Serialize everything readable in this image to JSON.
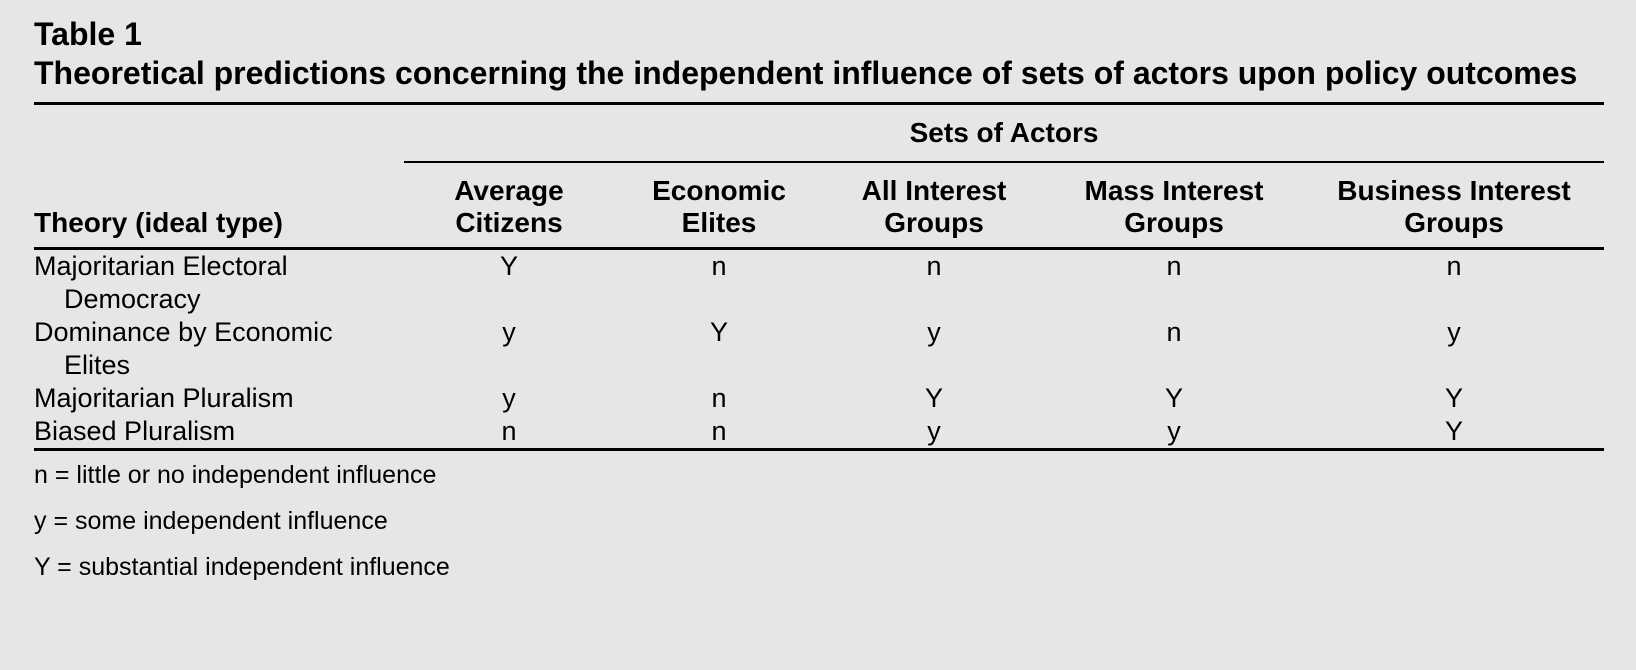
{
  "table_label": "Table 1",
  "table_title": "Theoretical predictions concerning the independent influence of sets of actors upon policy outcomes",
  "spanner": "Sets of Actors",
  "columns": {
    "theory": "Theory (ideal type)",
    "avg_line1": "Average",
    "avg_line2": "Citizens",
    "econ_line1": "Economic",
    "econ_line2": "Elites",
    "all_line1": "All Interest",
    "all_line2": "Groups",
    "mass_line1": "Mass Interest",
    "mass_line2": "Groups",
    "bus_line1": "Business Interest",
    "bus_line2": "Groups"
  },
  "rows": [
    {
      "theory": "Majoritarian Electoral Democracy",
      "avg": "Y",
      "econ": "n",
      "all": "n",
      "mass": "n",
      "bus": "n"
    },
    {
      "theory": "Dominance by Economic Elites",
      "avg": "y",
      "econ": "Y",
      "all": "y",
      "mass": "n",
      "bus": "y"
    },
    {
      "theory": "Majoritarian Pluralism",
      "avg": "y",
      "econ": "n",
      "all": "Y",
      "mass": "Y",
      "bus": "Y"
    },
    {
      "theory": "Biased Pluralism",
      "avg": "n",
      "econ": "n",
      "all": "y",
      "mass": "y",
      "bus": "Y"
    }
  ],
  "legend": [
    "n = little or no independent influence",
    "y = some independent influence",
    "Y = substantial independent influence"
  ]
}
